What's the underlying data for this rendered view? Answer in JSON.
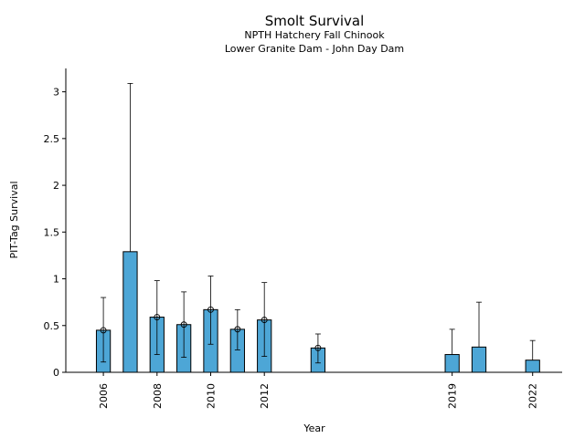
{
  "chart_data": {
    "type": "bar",
    "title": "Smolt Survival",
    "subtitle": [
      "NPTH Hatchery Fall Chinook",
      "Lower Granite Dam - John Day Dam"
    ],
    "xlabel": "Year",
    "ylabel": "PIT-Tag Survival",
    "xlim": [
      2004.6,
      2023.1
    ],
    "ylim": [
      0,
      3.25
    ],
    "xticks": [
      2006,
      2008,
      2010,
      2012,
      2019,
      2022
    ],
    "yticks": [
      0,
      0.5,
      1,
      1.5,
      2,
      2.5,
      3
    ],
    "ytick_labels": [
      "0",
      "0.5",
      "1",
      "1.5",
      "2",
      "2.5",
      "3"
    ],
    "bar_color": "#4da6d6",
    "grid": false,
    "series": [
      {
        "values": [
          {
            "x": 2006,
            "y": 0.45,
            "lower": 0.11,
            "upper": 0.8,
            "marker": true
          },
          {
            "x": 2007,
            "y": 1.29,
            "lower": null,
            "upper": 3.09,
            "marker": false
          },
          {
            "x": 2008,
            "y": 0.59,
            "lower": 0.19,
            "upper": 0.98,
            "marker": true
          },
          {
            "x": 2009,
            "y": 0.51,
            "lower": 0.16,
            "upper": 0.86,
            "marker": true
          },
          {
            "x": 2010,
            "y": 0.67,
            "lower": 0.3,
            "upper": 1.03,
            "marker": true
          },
          {
            "x": 2011,
            "y": 0.46,
            "lower": 0.24,
            "upper": 0.67,
            "marker": true
          },
          {
            "x": 2012,
            "y": 0.56,
            "lower": 0.17,
            "upper": 0.96,
            "marker": true
          },
          {
            "x": 2014,
            "y": 0.26,
            "lower": 0.1,
            "upper": 0.41,
            "marker": true
          },
          {
            "x": 2019,
            "y": 0.19,
            "lower": null,
            "upper": 0.46,
            "marker": false
          },
          {
            "x": 2020,
            "y": 0.27,
            "lower": null,
            "upper": 0.75,
            "marker": false
          },
          {
            "x": 2022,
            "y": 0.13,
            "lower": null,
            "upper": 0.34,
            "marker": false
          }
        ]
      }
    ]
  }
}
